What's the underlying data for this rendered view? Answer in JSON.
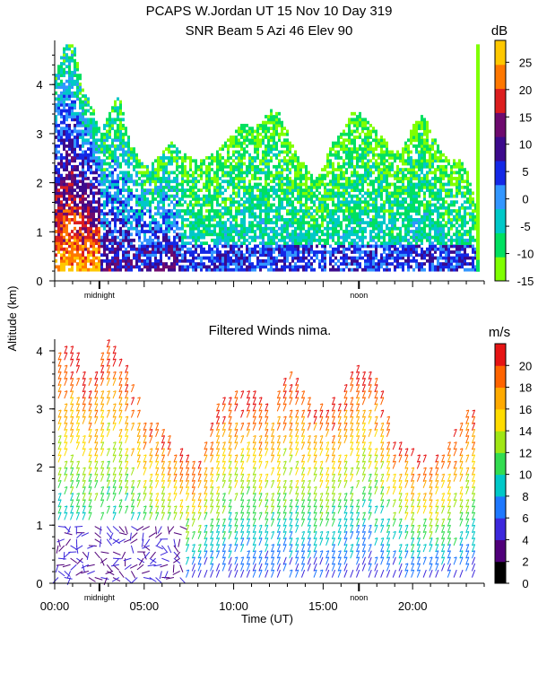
{
  "header": {
    "title_line1": "PCAPS W.Jordan UT  15 Nov 10 Day 319",
    "title_line2": "SNR Beam 5 Azi  46 Elev 90"
  },
  "shared": {
    "ylabel": "Altitude (km)",
    "xlabel": "Time (UT)",
    "x_ticks": [
      "00:00",
      "05:00",
      "10:00",
      "15:00",
      "20:00"
    ],
    "x_tick_hours": [
      0,
      5,
      10,
      15,
      20
    ],
    "x_range_hours": [
      0,
      24
    ],
    "day_markers": [
      {
        "label": "midnight",
        "hour": 2.5
      },
      {
        "label": "noon",
        "hour": 17.0
      }
    ]
  },
  "chart_data": [
    {
      "type": "heatmap",
      "title": "SNR Beam 5 Azi  46 Elev 90",
      "variable": "SNR",
      "colorbar_unit": "dB",
      "colorbar_ticks": [
        25,
        20,
        15,
        10,
        5,
        0,
        -5,
        -10,
        -15
      ],
      "colorbar_range": [
        -15,
        29
      ],
      "colors": [
        "#7fff00",
        "#00e060",
        "#00c8c8",
        "#3296ff",
        "#1428e6",
        "#3c0a8c",
        "#6e0a6e",
        "#dc1e1e",
        "#ff7800",
        "#ffc800"
      ],
      "xlim": [
        0,
        24
      ],
      "ylim": [
        0,
        4.9
      ],
      "y_ticks": [
        0,
        1,
        2,
        3,
        4
      ],
      "echo_top_km": [
        [
          0,
          4.2
        ],
        [
          0.5,
          4.8
        ],
        [
          1,
          4.8
        ],
        [
          1.5,
          3.9
        ],
        [
          2,
          3.6
        ],
        [
          2.5,
          3.0
        ],
        [
          3,
          3.4
        ],
        [
          3.5,
          3.8
        ],
        [
          4,
          3.0
        ],
        [
          4.5,
          2.6
        ],
        [
          5,
          2.3
        ],
        [
          5.5,
          2.4
        ],
        [
          6,
          2.6
        ],
        [
          6.5,
          2.8
        ],
        [
          7,
          2.6
        ],
        [
          7.5,
          2.5
        ],
        [
          8,
          2.4
        ],
        [
          8.5,
          2.5
        ],
        [
          9,
          2.6
        ],
        [
          9.5,
          2.8
        ],
        [
          10,
          3.0
        ],
        [
          10.5,
          3.2
        ],
        [
          11,
          3.1
        ],
        [
          11.5,
          3.2
        ],
        [
          12,
          3.5
        ],
        [
          12.5,
          3.4
        ],
        [
          13,
          3.0
        ],
        [
          13.5,
          2.5
        ],
        [
          14,
          2.3
        ],
        [
          14.5,
          2.0
        ],
        [
          15,
          2.4
        ],
        [
          15.5,
          2.8
        ],
        [
          16,
          3.0
        ],
        [
          16.5,
          3.4
        ],
        [
          17,
          3.4
        ],
        [
          17.5,
          3.2
        ],
        [
          18,
          3.0
        ],
        [
          18.5,
          2.8
        ],
        [
          19,
          2.6
        ],
        [
          19.5,
          2.8
        ],
        [
          20,
          3.2
        ],
        [
          20.5,
          3.4
        ],
        [
          21,
          3.0
        ],
        [
          21.5,
          2.6
        ],
        [
          22,
          2.4
        ],
        [
          22.5,
          2.5
        ],
        [
          23,
          2.2
        ],
        [
          23.5,
          1.5
        ]
      ]
    },
    {
      "type": "scatter",
      "title": "Filtered Winds nima.",
      "variable": "wind speed (barbs)",
      "colorbar_unit": "m/s",
      "colorbar_ticks": [
        20,
        18,
        16,
        14,
        12,
        10,
        8,
        6,
        4,
        2,
        0
      ],
      "colorbar_range": [
        0,
        22
      ],
      "colors": [
        "#000000",
        "#50007a",
        "#3c28dc",
        "#1e78ff",
        "#00c8c8",
        "#32dc50",
        "#a0e614",
        "#ffdc00",
        "#ffaa00",
        "#ff6400",
        "#e61414"
      ],
      "xlim": [
        0,
        24
      ],
      "ylim": [
        0,
        4.2
      ],
      "y_ticks": [
        0,
        1,
        2,
        3,
        4
      ],
      "wind_top_km": [
        [
          0,
          4.2
        ],
        [
          1,
          4.0
        ],
        [
          2,
          3.4
        ],
        [
          3,
          4.2
        ],
        [
          4,
          3.6
        ],
        [
          5,
          2.8
        ],
        [
          6,
          2.6
        ],
        [
          7,
          2.2
        ],
        [
          8,
          2.0
        ],
        [
          9,
          3.0
        ],
        [
          10,
          3.2
        ],
        [
          11,
          3.2
        ],
        [
          12,
          3.0
        ],
        [
          13,
          3.6
        ],
        [
          14,
          3.2
        ],
        [
          15,
          3.0
        ],
        [
          16,
          3.2
        ],
        [
          17,
          3.8
        ],
        [
          18,
          3.4
        ],
        [
          19,
          2.4
        ],
        [
          20,
          2.2
        ],
        [
          21,
          2.0
        ],
        [
          22,
          2.4
        ],
        [
          23,
          3.0
        ]
      ]
    }
  ]
}
